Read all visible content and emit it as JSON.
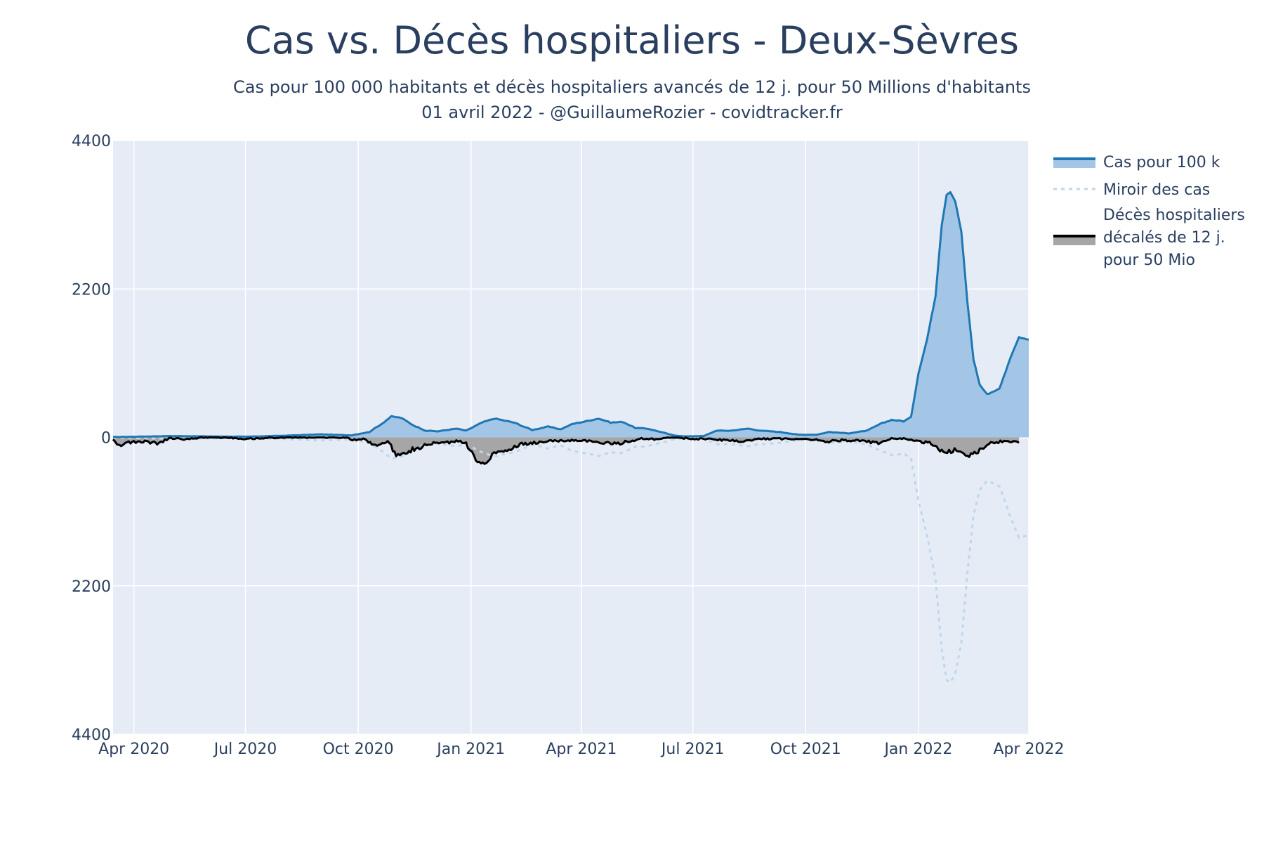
{
  "chart_data": {
    "type": "area",
    "title": "Cas vs. Décès hospitaliers - Deux-Sèvres",
    "subtitle_line1": "Cas pour 100 000 habitants et décès hospitaliers avancés de 12 j. pour 50 Millions d'habitants",
    "subtitle_line2": "01 avril 2022 - @GuillaumeRozier - covidtracker.fr",
    "x_range": [
      "2020-03-15",
      "2022-04-01"
    ],
    "ylim": [
      -4400,
      4400
    ],
    "y_ticks": [
      {
        "value": 4400,
        "label": "4400"
      },
      {
        "value": 2200,
        "label": "2200"
      },
      {
        "value": 0,
        "label": "0"
      },
      {
        "value": -2200,
        "label": "2200"
      },
      {
        "value": -4400,
        "label": "4400"
      }
    ],
    "x_ticks": [
      {
        "date": "2020-04-01",
        "label": "Apr 2020"
      },
      {
        "date": "2020-07-01",
        "label": "Jul 2020"
      },
      {
        "date": "2020-10-01",
        "label": "Oct 2020"
      },
      {
        "date": "2021-01-01",
        "label": "Jan 2021"
      },
      {
        "date": "2021-04-01",
        "label": "Apr 2021"
      },
      {
        "date": "2021-07-01",
        "label": "Jul 2021"
      },
      {
        "date": "2021-10-01",
        "label": "Oct 2021"
      },
      {
        "date": "2022-01-01",
        "label": "Jan 2022"
      },
      {
        "date": "2022-04-01",
        "label": "Apr 2022"
      }
    ],
    "grid": true,
    "legend_position": "right",
    "series": [
      {
        "name": "Cas pour 100 k",
        "color": "#1f77b4",
        "fill": "#a3c6e6",
        "points": [
          [
            "2020-03-15",
            5
          ],
          [
            "2020-05-01",
            20
          ],
          [
            "2020-06-01",
            15
          ],
          [
            "2020-07-01",
            10
          ],
          [
            "2020-08-01",
            25
          ],
          [
            "2020-09-01",
            45
          ],
          [
            "2020-09-25",
            30
          ],
          [
            "2020-10-10",
            80
          ],
          [
            "2020-10-20",
            200
          ],
          [
            "2020-10-28",
            310
          ],
          [
            "2020-11-05",
            290
          ],
          [
            "2020-11-15",
            180
          ],
          [
            "2020-11-25",
            100
          ],
          [
            "2020-12-05",
            90
          ],
          [
            "2020-12-20",
            130
          ],
          [
            "2020-12-28",
            100
          ],
          [
            "2021-01-10",
            220
          ],
          [
            "2021-01-20",
            280
          ],
          [
            "2021-02-05",
            220
          ],
          [
            "2021-02-20",
            110
          ],
          [
            "2021-03-05",
            160
          ],
          [
            "2021-03-15",
            120
          ],
          [
            "2021-03-25",
            200
          ],
          [
            "2021-04-05",
            240
          ],
          [
            "2021-04-15",
            280
          ],
          [
            "2021-04-25",
            220
          ],
          [
            "2021-05-05",
            230
          ],
          [
            "2021-05-15",
            140
          ],
          [
            "2021-05-25",
            130
          ],
          [
            "2021-06-05",
            80
          ],
          [
            "2021-06-15",
            30
          ],
          [
            "2021-06-25",
            15
          ],
          [
            "2021-07-10",
            20
          ],
          [
            "2021-07-20",
            100
          ],
          [
            "2021-08-01",
            100
          ],
          [
            "2021-08-15",
            130
          ],
          [
            "2021-08-25",
            100
          ],
          [
            "2021-09-10",
            80
          ],
          [
            "2021-09-25",
            40
          ],
          [
            "2021-10-10",
            40
          ],
          [
            "2021-10-20",
            80
          ],
          [
            "2021-11-05",
            60
          ],
          [
            "2021-11-20",
            100
          ],
          [
            "2021-12-01",
            200
          ],
          [
            "2021-12-10",
            260
          ],
          [
            "2021-12-20",
            240
          ],
          [
            "2021-12-26",
            300
          ],
          [
            "2022-01-01",
            950
          ],
          [
            "2022-01-08",
            1450
          ],
          [
            "2022-01-15",
            2100
          ],
          [
            "2022-01-20",
            3150
          ],
          [
            "2022-01-24",
            3600
          ],
          [
            "2022-01-27",
            3640
          ],
          [
            "2022-01-31",
            3500
          ],
          [
            "2022-02-05",
            3050
          ],
          [
            "2022-02-10",
            2000
          ],
          [
            "2022-02-15",
            1150
          ],
          [
            "2022-02-20",
            780
          ],
          [
            "2022-02-26",
            640
          ],
          [
            "2022-03-03",
            680
          ],
          [
            "2022-03-08",
            720
          ],
          [
            "2022-03-13",
            970
          ],
          [
            "2022-03-18",
            1230
          ],
          [
            "2022-03-24",
            1480
          ],
          [
            "2022-04-01",
            1450
          ]
        ]
      },
      {
        "name": "Miroir des cas",
        "color": "#bfd7ec"
      },
      {
        "name": "Décès hospitaliers décalés de 12 j. pour 50 Mio",
        "name_lines": [
          "Décès hospitaliers",
          "décalés de 12 j.",
          "pour 50 Mio"
        ],
        "color": "#000000",
        "fill": "#a6a6a6",
        "points": [
          [
            "2020-03-15",
            20
          ],
          [
            "2020-03-20",
            120
          ],
          [
            "2020-03-25",
            80
          ],
          [
            "2020-04-01",
            70
          ],
          [
            "2020-04-10",
            60
          ],
          [
            "2020-04-20",
            90
          ],
          [
            "2020-05-01",
            10
          ],
          [
            "2020-05-15",
            30
          ],
          [
            "2020-05-25",
            0
          ],
          [
            "2020-06-15",
            0
          ],
          [
            "2020-07-01",
            20
          ],
          [
            "2020-08-01",
            0
          ],
          [
            "2020-09-01",
            0
          ],
          [
            "2020-09-20",
            0
          ],
          [
            "2020-09-28",
            40
          ],
          [
            "2020-10-05",
            20
          ],
          [
            "2020-10-15",
            120
          ],
          [
            "2020-10-25",
            60
          ],
          [
            "2020-11-01",
            250
          ],
          [
            "2020-11-10",
            200
          ],
          [
            "2020-11-20",
            150
          ],
          [
            "2020-11-30",
            90
          ],
          [
            "2020-12-10",
            80
          ],
          [
            "2020-12-20",
            60
          ],
          [
            "2020-12-28",
            80
          ],
          [
            "2021-01-05",
            350
          ],
          [
            "2021-01-12",
            380
          ],
          [
            "2021-01-20",
            220
          ],
          [
            "2021-02-01",
            180
          ],
          [
            "2021-02-10",
            100
          ],
          [
            "2021-02-20",
            90
          ],
          [
            "2021-03-01",
            60
          ],
          [
            "2021-03-15",
            50
          ],
          [
            "2021-04-01",
            40
          ],
          [
            "2021-04-15",
            80
          ],
          [
            "2021-05-01",
            90
          ],
          [
            "2021-05-20",
            20
          ],
          [
            "2021-06-01",
            30
          ],
          [
            "2021-06-15",
            0
          ],
          [
            "2021-07-01",
            20
          ],
          [
            "2021-07-20",
            30
          ],
          [
            "2021-08-10",
            60
          ],
          [
            "2021-08-25",
            20
          ],
          [
            "2021-09-10",
            20
          ],
          [
            "2021-10-01",
            20
          ],
          [
            "2021-10-20",
            60
          ],
          [
            "2021-11-01",
            40
          ],
          [
            "2021-11-20",
            60
          ],
          [
            "2021-12-01",
            90
          ],
          [
            "2021-12-10",
            20
          ],
          [
            "2021-12-20",
            20
          ],
          [
            "2022-01-01",
            60
          ],
          [
            "2022-01-10",
            80
          ],
          [
            "2022-01-20",
            220
          ],
          [
            "2022-02-01",
            180
          ],
          [
            "2022-02-10",
            260
          ],
          [
            "2022-02-20",
            200
          ],
          [
            "2022-03-01",
            80
          ],
          [
            "2022-03-15",
            50
          ],
          [
            "2022-03-24",
            80
          ]
        ]
      }
    ]
  }
}
